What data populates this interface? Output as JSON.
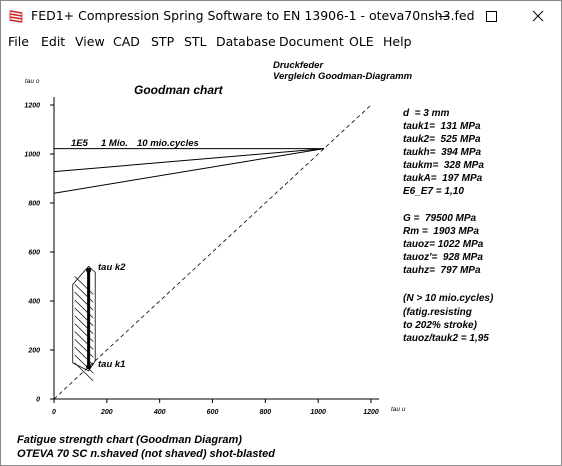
{
  "window": {
    "title": "FED1+  Compression Spring Software to EN 13906-1  -  oteva70nsh3.fed",
    "icon": "spring-app-icon",
    "buttons": {
      "minimize": "minimize-icon",
      "maximize": "maximize-icon",
      "close": "close-icon"
    }
  },
  "menu": {
    "items": [
      "File",
      "Edit",
      "View",
      "CAD",
      "STP",
      "STL",
      "Database",
      "Document",
      "OLE",
      "Help"
    ]
  },
  "header": {
    "line1": "Druckfeder",
    "line2": "Vergleich Goodman-Diagramm"
  },
  "chart_data": {
    "type": "line",
    "title": "Goodman chart",
    "xlabel": "tau u",
    "ylabel": "tau o",
    "xlim": [
      0,
      1200
    ],
    "ylim": [
      0,
      1200
    ],
    "xticks": [
      "0",
      "200",
      "400",
      "600",
      "800",
      "1000",
      "1200"
    ],
    "yticks": [
      "0",
      "200",
      "400",
      "600",
      "800",
      "1000",
      "1200"
    ],
    "grid": false,
    "series": [
      {
        "name": "1E5",
        "x": [
          0,
          1022
        ],
        "y": [
          928,
          1022
        ]
      },
      {
        "name": "1 Mio.",
        "x": [
          0,
          1022
        ],
        "y": [
          840,
          1022
        ]
      },
      {
        "name": "10 mio.cycles",
        "x": [
          0,
          1022
        ],
        "y": [
          1022,
          1022
        ]
      }
    ],
    "diagonal": {
      "x": [
        0,
        1200
      ],
      "y": [
        0,
        1200
      ]
    },
    "stroke_range": {
      "tauk1": 131,
      "tauk2": 525,
      "taukh": 394,
      "taukA": 197
    },
    "stroke_labels": {
      "top": "tau k2",
      "bottom": "tau k1"
    }
  },
  "params": {
    "group1": [
      "d  = 3 mm",
      "tauk1=  131 MPa",
      "tauk2=  525 MPa",
      "taukh=  394 MPa",
      "taukm=  328 MPa",
      "taukA=  197 MPa",
      "E6_E7 = 1,10"
    ],
    "group2": [
      "G =  79500 MPa",
      "Rm =  1903 MPa",
      "tauoz= 1022 MPa",
      "tauoz'=  928 MPa",
      "tauhz=  797 MPa"
    ],
    "group3": [
      "(N > 10 mio.cycles)",
      "(fatig.resisting",
      "to 202% stroke)",
      "tauoz/tauk2 = 1,95"
    ]
  },
  "footer": {
    "line1": "Fatigue strength chart (Goodman Diagram)",
    "line2": "OTEVA 70 SC n.shaved (not shaved) shot-blasted"
  },
  "colors": {
    "accent": "#e03030",
    "line": "#000000",
    "background": "#ffffff"
  }
}
